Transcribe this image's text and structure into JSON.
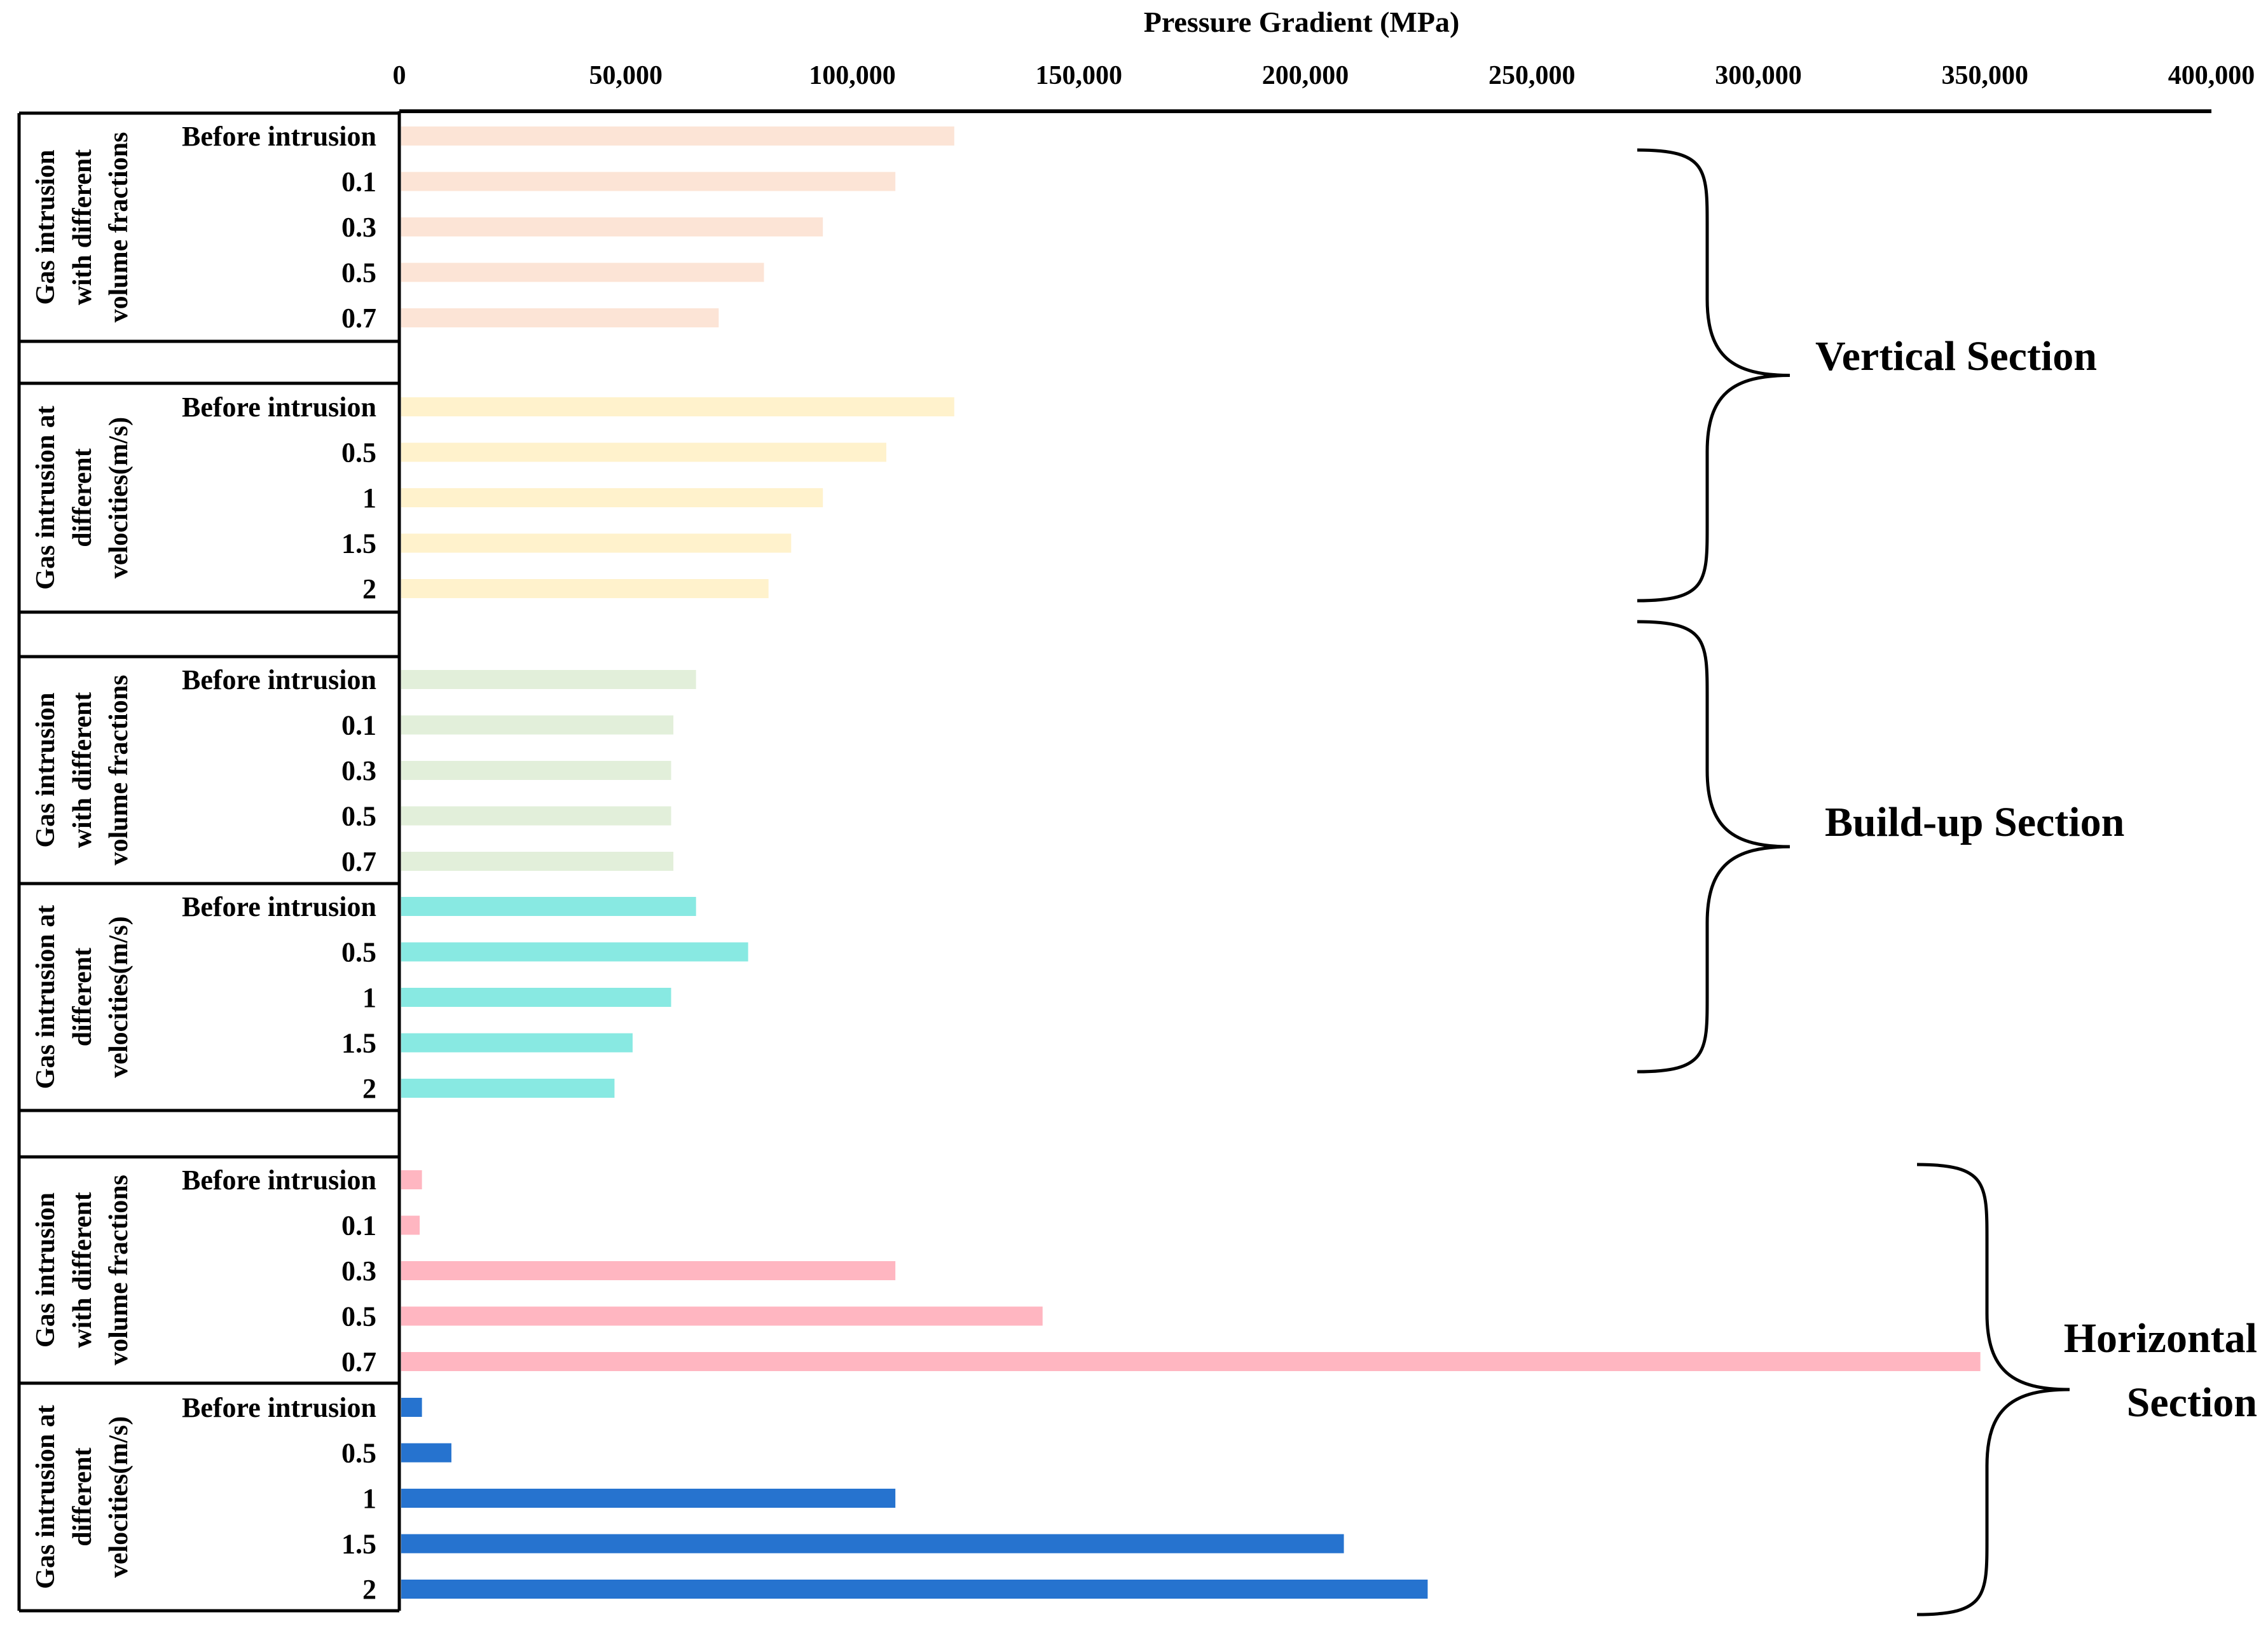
{
  "chart_data": {
    "type": "bar",
    "orientation": "horizontal",
    "title": "Pressure Gradient (MPa)",
    "xlabel": "Pressure Gradient (MPa)",
    "ylabel": "",
    "xlim": [
      0,
      400000
    ],
    "x_ticks": [
      0,
      50000,
      100000,
      150000,
      200000,
      250000,
      300000,
      350000,
      400000
    ],
    "x_tick_labels": [
      "0",
      "50,000",
      "100,000",
      "150,000",
      "200,000",
      "250,000",
      "300,000",
      "350,000",
      "400,000"
    ],
    "grid": false,
    "sections": [
      {
        "name": "Vertical Section",
        "name_lines": [
          "Vertical Section"
        ],
        "groups": [
          {
            "label_lines": [
              "Gas intrusion",
              "with different",
              "volume fractions"
            ],
            "color": "#FCE4D6",
            "categories": [
              "Before intrusion",
              "0.1",
              "0.3",
              "0.5",
              "0.7"
            ],
            "values": [
              122500,
              109500,
              93500,
              80500,
              70500
            ]
          },
          {
            "label_lines": [
              "Gas intrusion at",
              "different",
              "velocities(m/s)"
            ],
            "color": "#FFF2CC",
            "categories": [
              "Before intrusion",
              "0.5",
              "1",
              "1.5",
              "2"
            ],
            "values": [
              122500,
              107500,
              93500,
              86500,
              81500
            ]
          }
        ]
      },
      {
        "name": "Build-up Section",
        "name_lines": [
          "Build-up Section"
        ],
        "groups": [
          {
            "label_lines": [
              "Gas intrusion",
              "with different",
              "volume fractions"
            ],
            "color": "#E2EFDA",
            "categories": [
              "Before intrusion",
              "0.1",
              "0.3",
              "0.5",
              "0.7"
            ],
            "values": [
              65500,
              60500,
              60000,
              60000,
              60500
            ]
          },
          {
            "label_lines": [
              "Gas intrusion at",
              "different",
              "velocities(m/s)"
            ],
            "color": "#88E9E2",
            "categories": [
              "Before intrusion",
              "0.5",
              "1",
              "1.5",
              "2"
            ],
            "values": [
              65500,
              77000,
              60000,
              51500,
              47500
            ]
          }
        ]
      },
      {
        "name": "Horizontal Section",
        "name_lines": [
          "Horizontal",
          "Section"
        ],
        "groups": [
          {
            "label_lines": [
              "Gas intrusion",
              "with different",
              "volume fractions"
            ],
            "color": "#FFB6C1",
            "categories": [
              "Before intrusion",
              "0.1",
              "0.3",
              "0.5",
              "0.7"
            ],
            "values": [
              5000,
              4500,
              109500,
              142000,
              349000
            ]
          },
          {
            "label_lines": [
              "Gas intrusion at",
              "different",
              "velocities(m/s)"
            ],
            "color": "#2673CF",
            "categories": [
              "Before intrusion",
              "0.5",
              "1",
              "1.5",
              "2"
            ],
            "values": [
              5000,
              11500,
              109500,
              208500,
              227000
            ]
          }
        ]
      }
    ]
  }
}
